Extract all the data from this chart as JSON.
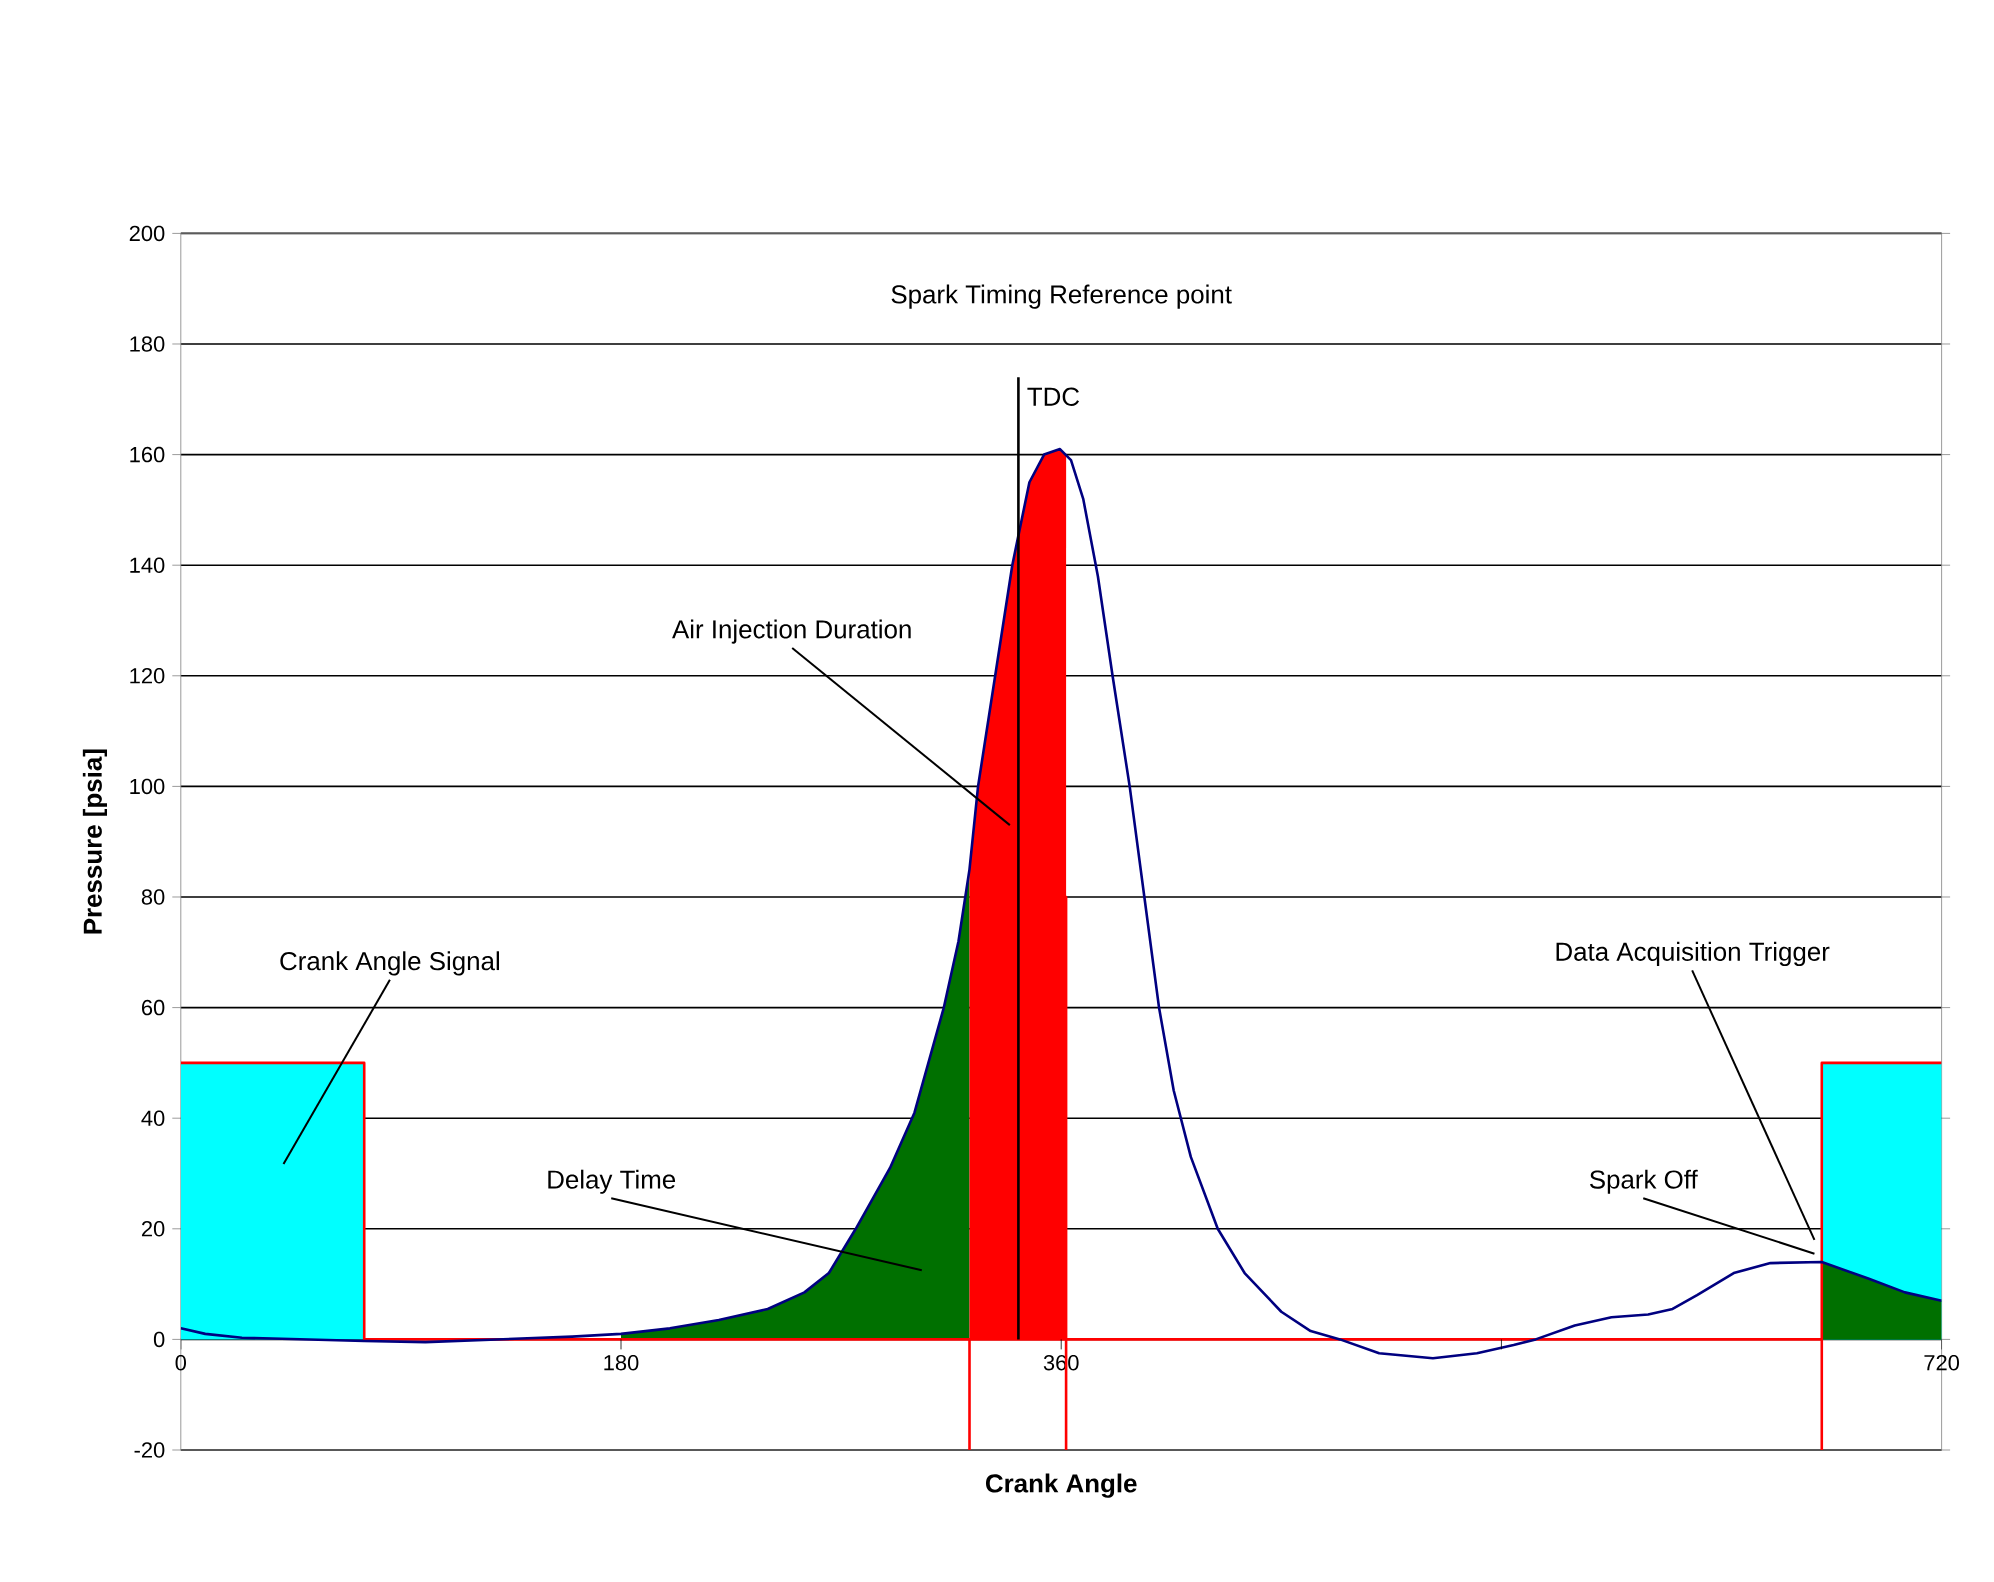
{
  "chart_data": {
    "type": "line",
    "xlabel": "Crank Angle",
    "ylabel": "Pressure [psia]",
    "xlim": [
      0,
      720
    ],
    "ylim": [
      -20,
      200
    ],
    "xticks": [
      0,
      180,
      360,
      {
        "value": 540,
        "label": null
      },
      720
    ],
    "yticks": [
      -20,
      0,
      20,
      40,
      60,
      80,
      100,
      120,
      140,
      160,
      180,
      200
    ],
    "grid": "y",
    "series": [
      {
        "type": "area",
        "color": "#00ffff",
        "x": [
          0,
          75
        ],
        "values": [
          50,
          50
        ]
      },
      {
        "type": "area",
        "color": "#00ffff",
        "x": [
          671,
          720
        ],
        "values": [
          50,
          50
        ]
      },
      {
        "type": "area",
        "color": "#007000",
        "x": [
          180,
          200,
          220,
          240,
          255,
          265,
          276,
          290,
          300,
          312,
          318,
          322.5
        ],
        "values": [
          1,
          2,
          3.5,
          5.5,
          8.5,
          12,
          20,
          31,
          41,
          60,
          72,
          85
        ]
      },
      {
        "type": "area",
        "color": "#ff0000",
        "x": [
          322.5,
          326,
          333,
          340,
          347,
          353,
          359.5,
          362
        ],
        "values": [
          85,
          100,
          120,
          140,
          155,
          160,
          161,
          160
        ]
      },
      {
        "type": "area",
        "color": "#007000",
        "x": [
          671,
          690,
          705,
          720
        ],
        "values": [
          14,
          11,
          8.5,
          7
        ]
      },
      {
        "color": "#ff0000",
        "x": [
          0,
          75,
          75,
          322.5,
          322.5,
          322.5,
          362,
          362,
          362,
          362,
          671,
          671,
          671,
          720
        ],
        "values": [
          50,
          50,
          0,
          0,
          -20,
          0,
          0,
          80,
          -20,
          0,
          0,
          -20,
          50,
          50
        ]
      },
      {
        "color": "#000080",
        "x": [
          0,
          10,
          25,
          50,
          75,
          100,
          130,
          160,
          180,
          200,
          220,
          240,
          255,
          265,
          276,
          290,
          300,
          312,
          318,
          322.5,
          326,
          333,
          340,
          347,
          353,
          359.5,
          364,
          369,
          375,
          381,
          388,
          394,
          400,
          406,
          413,
          424,
          435,
          450,
          462,
          474,
          490,
          512,
          530,
          545,
          554,
          570,
          585,
          600,
          610,
          620,
          635,
          650,
          671,
          690,
          705,
          720
        ],
        "values": [
          2,
          1,
          0.3,
          0,
          -0.3,
          -0.5,
          0,
          0.5,
          1,
          2,
          3.5,
          5.5,
          8.5,
          12,
          20,
          31,
          41,
          60,
          72,
          85,
          100,
          120,
          140,
          155,
          160,
          161,
          159,
          152,
          138,
          120,
          100,
          80,
          60,
          45,
          33,
          20,
          12,
          5,
          1.5,
          0,
          -2.5,
          -3.4,
          -2.5,
          -1,
          0,
          2.5,
          4,
          4.5,
          5.5,
          8,
          12,
          13.8,
          14,
          11,
          8.5,
          7
        ]
      },
      {
        "color": "#000000",
        "x": [
          342.5,
          342.5
        ],
        "values": [
          0,
          174
        ]
      }
    ],
    "annotations": [
      "Spark Timing Reference point",
      {
        "text": "TDC",
        "x": 342.5,
        "y": 174
      },
      {
        "text": "Air Injection Duration",
        "x": 339,
        "y": 93
      },
      "Crank Angle Signal",
      "Delay Time",
      {
        "text": "Data Acquisition Trigger",
        "x": 668,
        "y": 18
      },
      {
        "text": "Spark Off",
        "x": 668,
        "y": 15.5
      }
    ]
  }
}
